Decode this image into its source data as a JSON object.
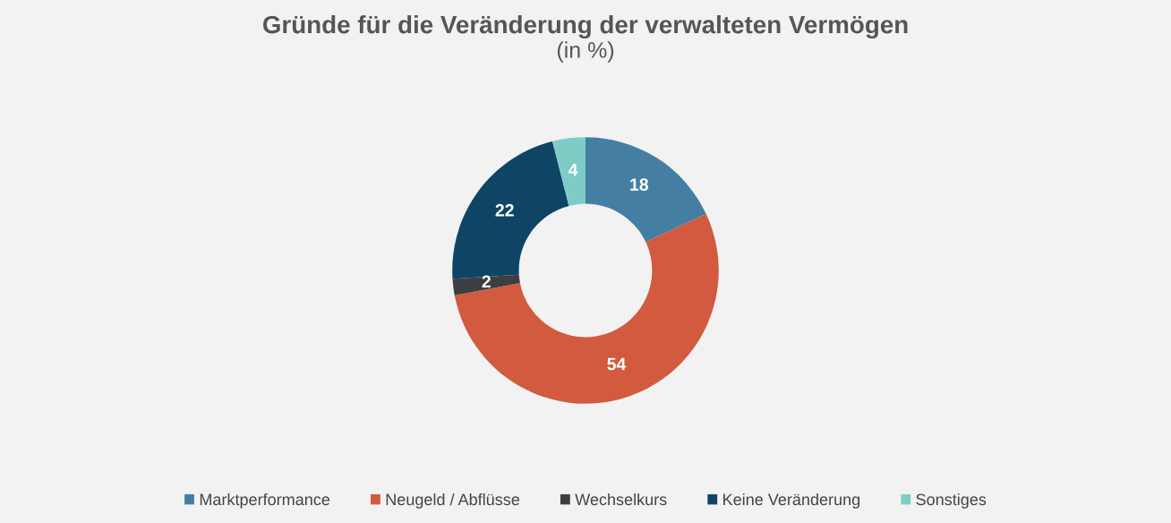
{
  "chart_data": {
    "type": "donut",
    "title": "Gründe für die Veränderung der verwalteten Vermögen",
    "subtitle": "(in %)",
    "categories": [
      "Marktperformance",
      "Neugeld / Abflüsse",
      "Wechselkurs",
      "Keine Veränderung",
      "Sonstiges"
    ],
    "values": [
      18,
      54,
      2,
      22,
      4
    ],
    "colors": [
      "#447fa3",
      "#d25a3e",
      "#3c3f42",
      "#0e4565",
      "#7dcdc6"
    ],
    "data_labels": true,
    "legend": "bottom"
  }
}
